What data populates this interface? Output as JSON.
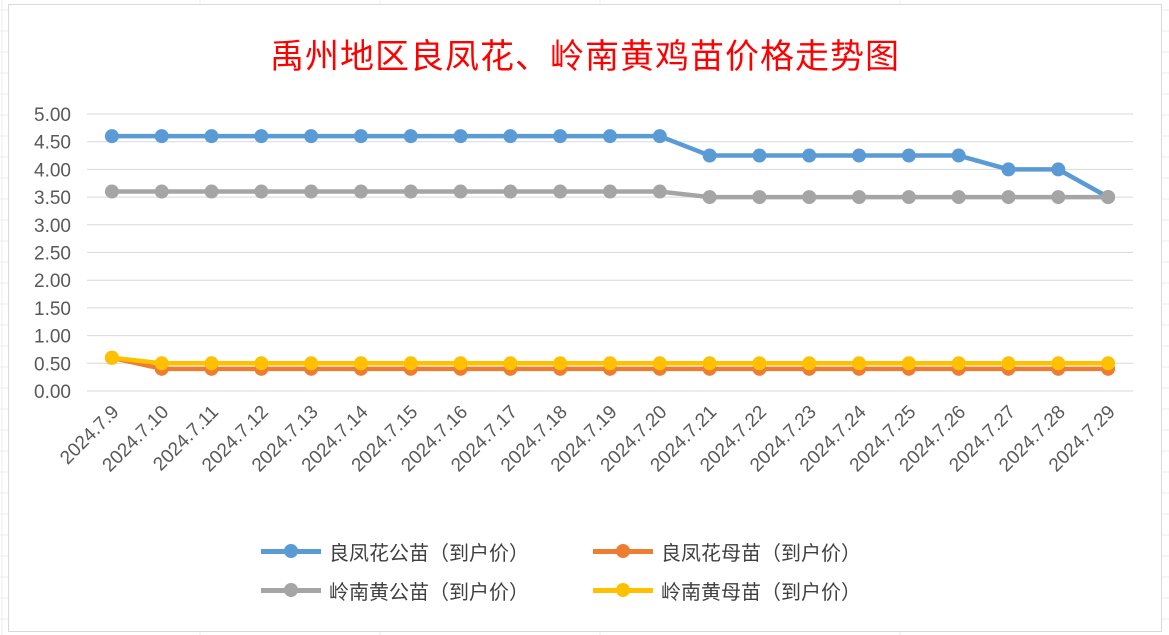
{
  "chart_data": {
    "type": "line",
    "title": "禹州地区良凤花、岭南黄鸡苗价格走势图",
    "categories": [
      "2024.7.9",
      "2024.7.10",
      "2024.7.11",
      "2024.7.12",
      "2024.7.13",
      "2024.7.14",
      "2024.7.15",
      "2024.7.16",
      "2024.7.17",
      "2024.7.18",
      "2024.7.19",
      "2024.7.20",
      "2024.7.21",
      "2024.7.22",
      "2024.7.23",
      "2024.7.24",
      "2024.7.25",
      "2024.7.26",
      "2024.7.27",
      "2024.7.28",
      "2024.7.29"
    ],
    "y_ticks": [
      "0.00",
      "0.50",
      "1.00",
      "1.50",
      "2.00",
      "2.50",
      "3.00",
      "3.50",
      "4.00",
      "4.50",
      "5.00"
    ],
    "ylim": [
      0,
      5
    ],
    "grid": true,
    "legend_position": "bottom",
    "series": [
      {
        "name": "良凤花公苗（到户价）",
        "color": "#5b9bd5",
        "values": [
          4.6,
          4.6,
          4.6,
          4.6,
          4.6,
          4.6,
          4.6,
          4.6,
          4.6,
          4.6,
          4.6,
          4.6,
          4.25,
          4.25,
          4.25,
          4.25,
          4.25,
          4.25,
          4.0,
          4.0,
          3.5
        ]
      },
      {
        "name": "良凤花母苗（到户价）",
        "color": "#ed7d31",
        "values": [
          0.6,
          0.4,
          0.4,
          0.4,
          0.4,
          0.4,
          0.4,
          0.4,
          0.4,
          0.4,
          0.4,
          0.4,
          0.4,
          0.4,
          0.4,
          0.4,
          0.4,
          0.4,
          0.4,
          0.4,
          0.4
        ]
      },
      {
        "name": "岭南黄公苗（到户价）",
        "color": "#a5a5a5",
        "values": [
          3.6,
          3.6,
          3.6,
          3.6,
          3.6,
          3.6,
          3.6,
          3.6,
          3.6,
          3.6,
          3.6,
          3.6,
          3.5,
          3.5,
          3.5,
          3.5,
          3.5,
          3.5,
          3.5,
          3.5,
          3.5
        ]
      },
      {
        "name": "岭南黄母苗（到户价）",
        "color": "#ffc000",
        "values": [
          0.6,
          0.5,
          0.5,
          0.5,
          0.5,
          0.5,
          0.5,
          0.5,
          0.5,
          0.5,
          0.5,
          0.5,
          0.5,
          0.5,
          0.5,
          0.5,
          0.5,
          0.5,
          0.5,
          0.5,
          0.5
        ]
      }
    ]
  }
}
